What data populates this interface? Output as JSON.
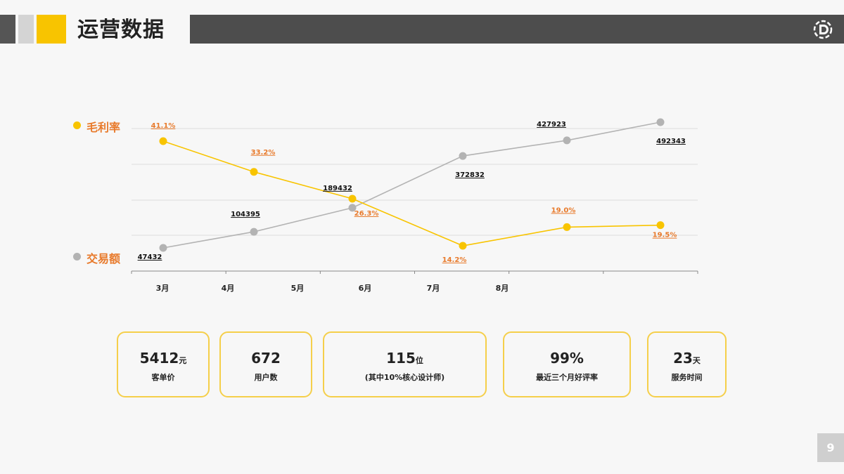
{
  "header": {
    "title": "运营数据"
  },
  "legend": [
    {
      "label": "毛利率",
      "color": "#f8c400"
    },
    {
      "label": "交易额",
      "color": "#b3b3b3"
    }
  ],
  "chart_data": {
    "type": "line",
    "categories": [
      "3月",
      "4月",
      "5月",
      "6月",
      "7月",
      "8月"
    ],
    "series": [
      {
        "name": "毛利率",
        "color": "#f8c400",
        "label_color": "#e87a2b",
        "values": [
          41.1,
          33.2,
          26.3,
          14.2,
          19.0,
          19.5
        ],
        "labels": [
          "41.1%",
          "33.2%",
          "26.3%",
          "14.2%",
          "19.0%",
          "19.5%"
        ]
      },
      {
        "name": "交易额",
        "color": "#b3b3b3",
        "label_color": "#111",
        "values": [
          47432,
          104395,
          189432,
          372832,
          427923,
          492343
        ],
        "labels": [
          "47432",
          "104395",
          "189432",
          "372832",
          "427923",
          "492343"
        ]
      }
    ],
    "grid": true,
    "legend_position": "left"
  },
  "stats": [
    {
      "value": "5412",
      "unit": "元",
      "label": "客单价"
    },
    {
      "value": "672",
      "unit": "",
      "label": "用户数"
    },
    {
      "value": "115",
      "unit": "位",
      "label": "(其中10%核心设计师)"
    },
    {
      "value": "99%",
      "unit": "",
      "label": "最近三个月好评率"
    },
    {
      "value": "23",
      "unit": "天",
      "label": "服务时间"
    }
  ],
  "page_number": "9"
}
